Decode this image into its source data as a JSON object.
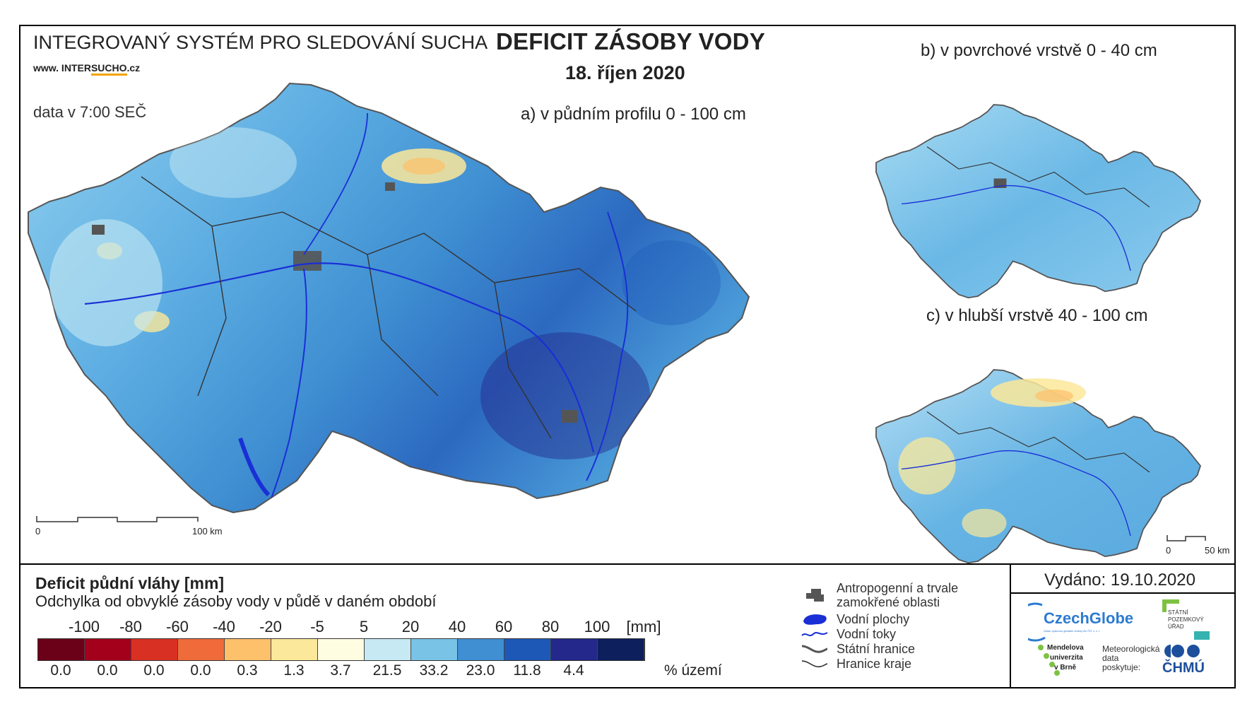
{
  "header": {
    "system_name": "INTEGROVANÝ SYSTÉM PRO SLEDOVÁNÍ SUCHA",
    "website_prefix": "www. INTER",
    "website_highlight": "SUCHO",
    "website_suffix": ".cz",
    "data_time": "data v 7:00 SEČ",
    "title": "DEFICIT ZÁSOBY VODY",
    "date": "18. říjen 2020"
  },
  "maps": {
    "a_label": "a) v půdním profilu 0 - 100 cm",
    "b_label": "b) v povrchové vrstvě 0 - 40 cm",
    "c_label": "c) v hlubší vrstvě 40 - 100 cm",
    "scale_a": {
      "zero": "0",
      "end": "100 km"
    },
    "scale_b": {
      "zero": "0",
      "end": "50 km"
    }
  },
  "legend": {
    "title": "Deficit půdní vláhy  [mm]",
    "subtitle": "Odchylka od obvyklé zásoby vody v půdě v daném období",
    "ticks": [
      "-100",
      "-80",
      "-60",
      "-40",
      "-20",
      "-5",
      "5",
      "20",
      "40",
      "60",
      "80",
      "100",
      "[mm]"
    ],
    "colors": [
      "#6b0019",
      "#a3001c",
      "#d83124",
      "#f06b3a",
      "#fdc06b",
      "#fbe89a",
      "#fffde1",
      "#c7e9f4",
      "#78c3e6",
      "#3f8fd2",
      "#1e58b6",
      "#23288a",
      "#0d1f5c"
    ],
    "percentages": [
      "0.0",
      "0.0",
      "0.0",
      "0.0",
      "0.3",
      "1.3",
      "3.7",
      "21.5",
      "33.2",
      "23.0",
      "11.8",
      "4.4"
    ],
    "percent_unit": "% území"
  },
  "map_key": [
    {
      "icon": "urban-area-icon",
      "label_1": "Antropogenní a trvale",
      "label_2": "zamokřené oblasti"
    },
    {
      "icon": "water-body-icon",
      "label_1": "Vodní plochy"
    },
    {
      "icon": "river-icon",
      "label_1": "Vodní toky"
    },
    {
      "icon": "state-border-icon",
      "label_1": "Státní hranice"
    },
    {
      "icon": "region-border-icon",
      "label_1": "Hranice kraje"
    }
  ],
  "issued": "Vydáno: 19.10.2020",
  "logos": {
    "czechglobe": "CzechGlobe",
    "czechglobe_sub": "Ústav výzkumu globální změny AV ČR, v. v. i.",
    "spu_1": "STÁTNÍ",
    "spu_2": "POZEMKOVÝ",
    "spu_3": "ÚŘAD",
    "mendel_1": "Mendelova",
    "mendel_2": "univerzita",
    "mendel_3": "v Brně",
    "met_1": "Meteorologická",
    "met_2": "data",
    "met_3": "poskytuje:",
    "chmu": "ČHMÚ"
  }
}
